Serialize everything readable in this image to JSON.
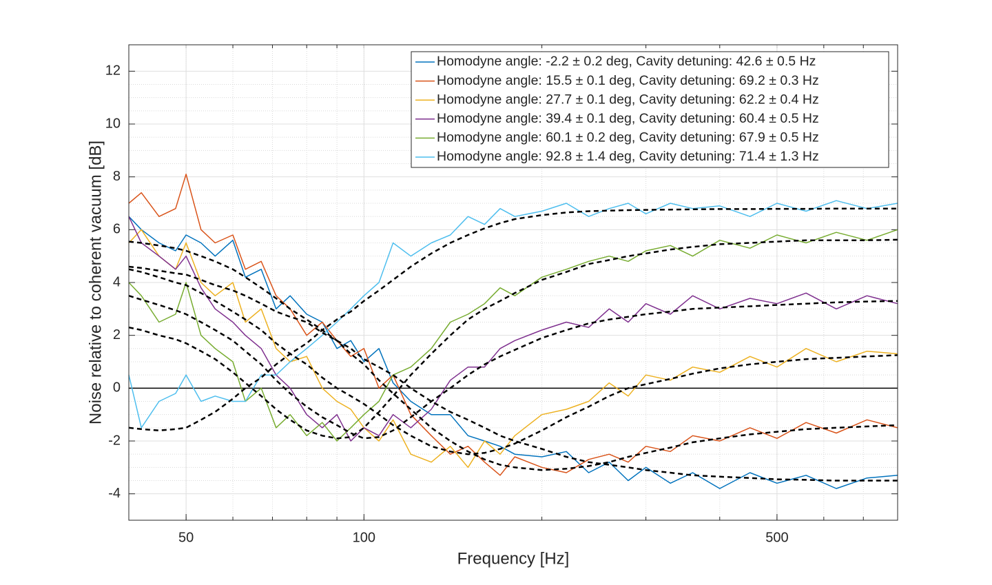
{
  "chart_data": {
    "type": "line",
    "xlabel": "Frequency [Hz]",
    "ylabel": "Noise relative to coherent vacuum [dB]",
    "xscale": "log",
    "xlim": [
      40,
      800
    ],
    "xticks": [
      50,
      100,
      500
    ],
    "ylim": [
      -5,
      13
    ],
    "yticks": [
      -4,
      -2,
      0,
      2,
      4,
      6,
      8,
      10,
      12
    ],
    "grid": true,
    "minor_grid": true,
    "legend": "upper right",
    "zero_line": 0,
    "x": [
      40,
      42,
      45,
      48,
      50,
      53,
      56,
      60,
      63,
      67,
      71,
      75,
      80,
      85,
      90,
      95,
      100,
      106,
      112,
      120,
      130,
      140,
      150,
      160,
      170,
      180,
      200,
      220,
      240,
      260,
      280,
      300,
      330,
      360,
      400,
      450,
      500,
      560,
      630,
      710,
      800
    ],
    "series": [
      {
        "name": "Homodyne angle: -2.2 ± 0.2 deg, Cavity detuning: 42.6 ± 0.5 Hz",
        "color": "#0072BD",
        "values": [
          6.5,
          6.0,
          5.5,
          5.2,
          5.8,
          5.5,
          5.0,
          5.6,
          4.2,
          4.5,
          3.0,
          3.5,
          2.8,
          2.5,
          1.5,
          1.8,
          1.0,
          1.5,
          0.2,
          -0.5,
          -1.0,
          -1.0,
          -1.8,
          -2.0,
          -2.2,
          -2.5,
          -2.6,
          -2.4,
          -3.2,
          -2.8,
          -3.5,
          -3.0,
          -3.6,
          -3.2,
          -3.8,
          -3.2,
          -3.6,
          -3.3,
          -3.8,
          -3.4,
          -3.3
        ]
      },
      {
        "name": "Homodyne angle: 15.5 ± 0.1 deg, Cavity detuning: 69.2 ± 0.3 Hz",
        "color": "#D95319",
        "values": [
          7.0,
          7.4,
          6.5,
          6.8,
          8.1,
          6.0,
          5.5,
          5.8,
          4.5,
          4.8,
          3.5,
          3.0,
          2.0,
          2.5,
          1.8,
          1.2,
          1.5,
          0.0,
          0.5,
          -1.0,
          -1.8,
          -2.5,
          -2.2,
          -2.8,
          -3.3,
          -2.6,
          -3.0,
          -3.2,
          -2.7,
          -2.5,
          -2.8,
          -2.2,
          -2.4,
          -1.8,
          -2.0,
          -1.5,
          -1.9,
          -1.3,
          -1.7,
          -1.2,
          -1.5
        ]
      },
      {
        "name": "Homodyne angle: 27.7 ± 0.1 deg, Cavity detuning: 62.2 ± 0.4 Hz",
        "color": "#EDB120",
        "values": [
          5.5,
          6.0,
          5.0,
          4.5,
          5.5,
          4.0,
          3.5,
          4.0,
          2.5,
          3.0,
          1.5,
          1.0,
          1.2,
          0.0,
          -0.5,
          -0.8,
          -1.5,
          -2.0,
          -1.2,
          -2.5,
          -2.8,
          -2.2,
          -3.0,
          -2.0,
          -2.5,
          -1.8,
          -1.0,
          -0.8,
          -0.5,
          0.2,
          -0.3,
          0.5,
          0.3,
          0.8,
          0.6,
          1.2,
          0.8,
          1.5,
          1.0,
          1.4,
          1.3
        ]
      },
      {
        "name": "Homodyne angle: 39.4 ± 0.1 deg, Cavity detuning: 60.4 ± 0.5 Hz",
        "color": "#7E2F8E",
        "values": [
          6.5,
          5.5,
          5.0,
          4.5,
          5.0,
          3.8,
          3.0,
          2.5,
          2.0,
          1.5,
          0.5,
          0.0,
          -1.0,
          -1.5,
          -1.0,
          -2.0,
          -1.5,
          -1.8,
          -1.0,
          -1.5,
          -0.8,
          0.3,
          0.8,
          0.8,
          1.5,
          1.8,
          2.2,
          2.5,
          2.3,
          3.0,
          2.5,
          3.2,
          2.8,
          3.5,
          3.0,
          3.4,
          3.2,
          3.6,
          3.0,
          3.5,
          3.2
        ]
      },
      {
        "name": "Homodyne angle: 60.1 ± 0.2 deg, Cavity detuning: 67.9 ± 0.5 Hz",
        "color": "#77AC30",
        "values": [
          4.0,
          3.5,
          2.5,
          2.8,
          4.0,
          2.0,
          1.5,
          1.0,
          -0.5,
          0.0,
          -1.5,
          -1.0,
          -1.8,
          -1.3,
          -2.0,
          -1.5,
          -1.0,
          -0.5,
          0.5,
          0.8,
          1.5,
          2.5,
          2.8,
          3.2,
          3.8,
          3.5,
          4.2,
          4.5,
          4.8,
          5.0,
          4.8,
          5.2,
          5.4,
          5.0,
          5.6,
          5.3,
          5.8,
          5.5,
          5.9,
          5.6,
          6.0
        ]
      },
      {
        "name": "Homodyne angle: 92.8 ± 1.4 deg, Cavity detuning: 71.4 ± 1.3 Hz",
        "color": "#4DBEEE",
        "values": [
          0.5,
          -1.5,
          -0.5,
          -0.2,
          0.5,
          -0.5,
          -0.3,
          -0.5,
          -0.5,
          0.5,
          0.5,
          1.0,
          1.5,
          2.0,
          2.5,
          3.0,
          3.5,
          4.0,
          5.5,
          5.0,
          5.5,
          5.8,
          6.5,
          6.2,
          6.8,
          6.5,
          6.7,
          7.0,
          6.5,
          6.8,
          7.0,
          6.6,
          7.0,
          6.8,
          6.9,
          6.5,
          7.0,
          6.7,
          7.1,
          6.8,
          7.0
        ]
      }
    ],
    "fit_color": "#000000",
    "fit_style": "dashed",
    "fits": [
      {
        "values": [
          4.6,
          4.55,
          4.45,
          4.35,
          4.3,
          4.1,
          3.9,
          3.7,
          3.5,
          3.2,
          2.9,
          2.7,
          2.5,
          2.1,
          1.8,
          1.5,
          1.1,
          0.8,
          0.5,
          0,
          -0.5,
          -0.9,
          -1.2,
          -1.5,
          -1.8,
          -2.0,
          -2.3,
          -2.6,
          -2.8,
          -2.9,
          -3.0,
          -3.1,
          -3.2,
          -3.3,
          -3.35,
          -3.4,
          -3.45,
          -3.47,
          -3.5,
          -3.5,
          -3.5
        ]
      },
      {
        "values": [
          5.55,
          5.5,
          5.4,
          5.3,
          5.2,
          5.0,
          4.8,
          4.5,
          4.2,
          3.8,
          3.4,
          3.0,
          2.6,
          2.2,
          1.8,
          1.3,
          0.9,
          0.3,
          -0.2,
          -0.8,
          -1.5,
          -2.0,
          -2.4,
          -2.7,
          -2.9,
          -3.0,
          -3.1,
          -3.05,
          -2.95,
          -2.8,
          -2.6,
          -2.45,
          -2.25,
          -2.05,
          -1.9,
          -1.75,
          -1.65,
          -1.55,
          -1.5,
          -1.45,
          -1.4
        ]
      },
      {
        "values": [
          4.5,
          4.4,
          4.2,
          4.0,
          3.9,
          3.6,
          3.3,
          2.9,
          2.6,
          2.2,
          1.7,
          1.3,
          0.9,
          0.4,
          0.0,
          -0.3,
          -0.6,
          -1.0,
          -1.4,
          -1.8,
          -2.2,
          -2.4,
          -2.5,
          -2.45,
          -2.3,
          -2.1,
          -1.6,
          -1.1,
          -0.7,
          -0.3,
          0.0,
          0.15,
          0.35,
          0.55,
          0.75,
          0.9,
          1.0,
          1.1,
          1.15,
          1.2,
          1.25
        ]
      },
      {
        "values": [
          3.5,
          3.35,
          3.15,
          2.95,
          2.8,
          2.5,
          2.2,
          1.8,
          1.4,
          0.9,
          0.3,
          -0.2,
          -0.7,
          -1.1,
          -1.4,
          -1.7,
          -1.9,
          -1.85,
          -1.6,
          -1.1,
          -0.5,
          0.0,
          0.5,
          0.9,
          1.2,
          1.45,
          1.9,
          2.2,
          2.45,
          2.6,
          2.7,
          2.8,
          2.9,
          3.0,
          3.05,
          3.1,
          3.15,
          3.2,
          3.25,
          3.28,
          3.3
        ]
      },
      {
        "values": [
          2.3,
          2.2,
          2.0,
          1.85,
          1.7,
          1.4,
          1.1,
          0.6,
          0.2,
          -0.3,
          -0.8,
          -1.2,
          -1.6,
          -1.8,
          -1.9,
          -1.85,
          -1.5,
          -0.9,
          -0.3,
          0.5,
          1.3,
          2.0,
          2.6,
          3.0,
          3.3,
          3.6,
          4.1,
          4.4,
          4.7,
          4.85,
          5.0,
          5.1,
          5.25,
          5.35,
          5.45,
          5.5,
          5.55,
          5.6,
          5.6,
          5.6,
          5.62
        ]
      },
      {
        "values": [
          -1.5,
          -1.55,
          -1.6,
          -1.55,
          -1.5,
          -1.2,
          -0.9,
          -0.4,
          0.0,
          0.4,
          0.9,
          1.3,
          1.7,
          2.2,
          2.6,
          2.9,
          3.3,
          3.7,
          4.1,
          4.6,
          5.1,
          5.5,
          5.8,
          6.05,
          6.25,
          6.4,
          6.55,
          6.65,
          6.7,
          6.72,
          6.74,
          6.75,
          6.76,
          6.77,
          6.78,
          6.78,
          6.79,
          6.79,
          6.8,
          6.8,
          6.8
        ]
      }
    ]
  }
}
